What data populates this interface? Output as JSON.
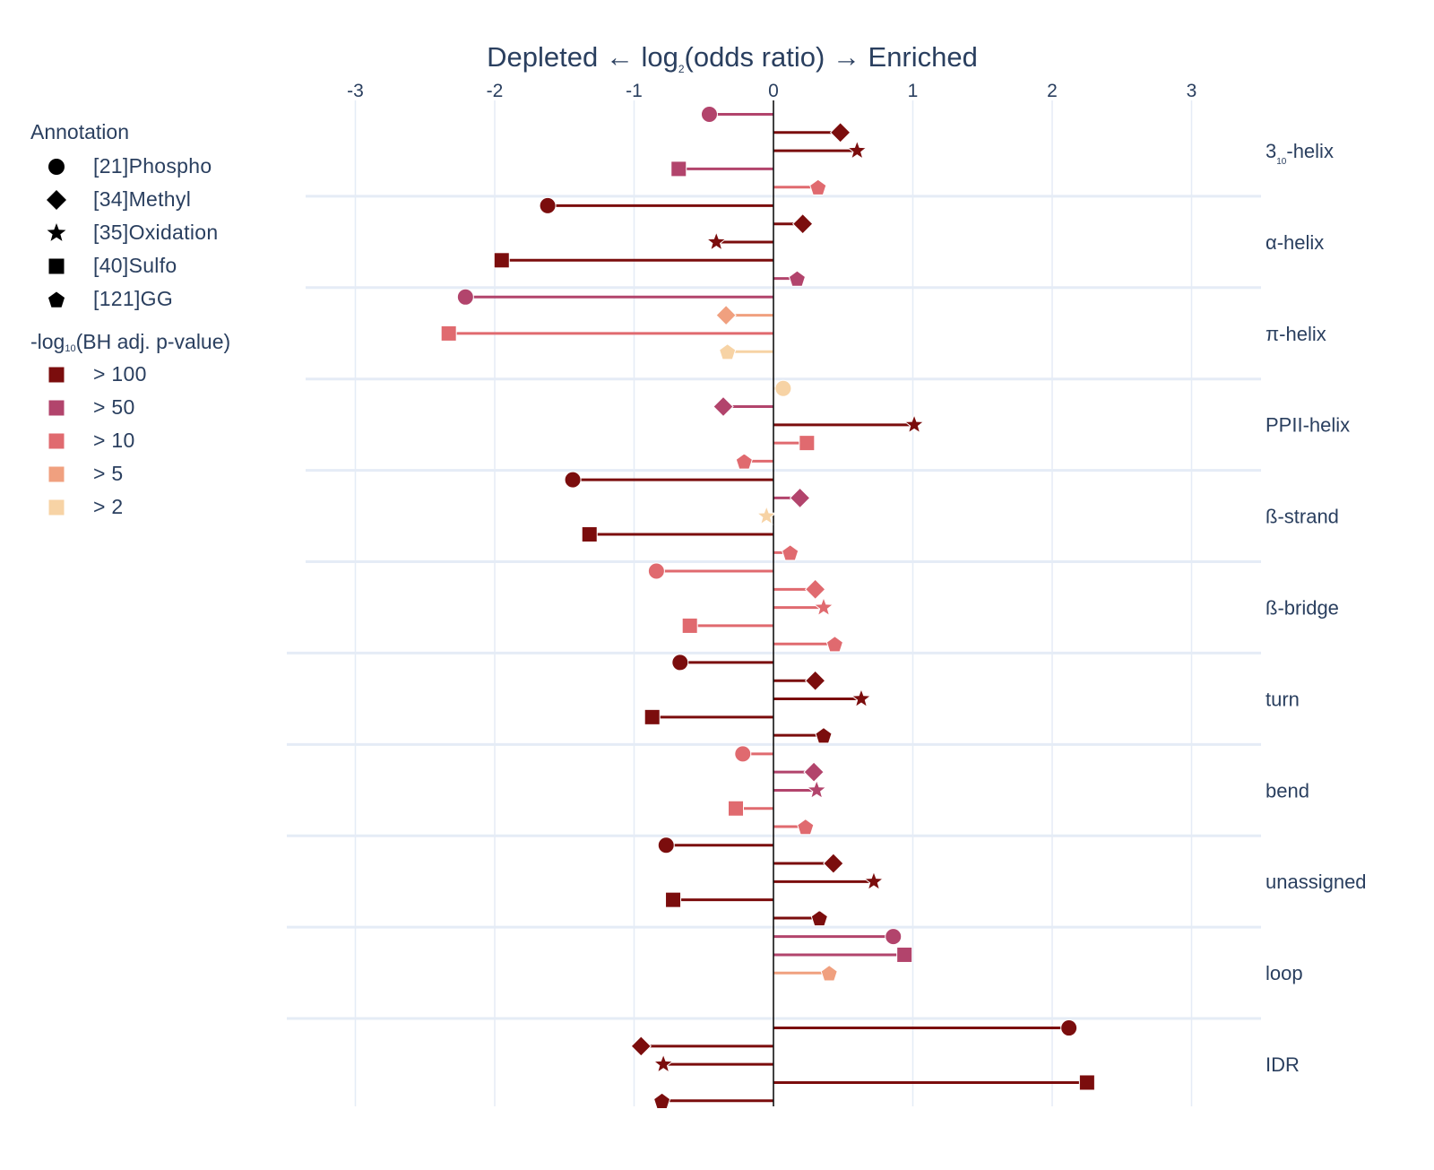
{
  "chart_data": {
    "type": "lollipop",
    "title_parts": {
      "prefix": "Depleted ← log",
      "subscript": "2",
      "suffix": "(odds ratio) → Enriched"
    },
    "xlim": [
      -3.4,
      3.4
    ],
    "xticks": [
      -3,
      -2,
      -1,
      0,
      1,
      2,
      3
    ],
    "xtick_labels": [
      "-3",
      "-2",
      "-1",
      "0",
      "1",
      "2",
      "3"
    ],
    "grid": true,
    "legend_position": "left",
    "annotation_legend": {
      "title": "Annotation",
      "items": [
        {
          "label": "[21]Phospho",
          "marker": "circle"
        },
        {
          "label": "[34]Methyl",
          "marker": "diamond"
        },
        {
          "label": "[35]Oxidation",
          "marker": "star"
        },
        {
          "label": "[40]Sulfo",
          "marker": "square"
        },
        {
          "label": "[121]GG",
          "marker": "pentagon"
        }
      ]
    },
    "pvalue_legend": {
      "title_prefix": "-log",
      "title_subscript": "10",
      "title_suffix": "(BH adj. p-value)",
      "items": [
        {
          "label": "> 100",
          "color": "#7b0d0d"
        },
        {
          "label": "> 50",
          "color": "#b2446c"
        },
        {
          "label": "> 10",
          "color": "#e06a6f"
        },
        {
          "label": "> 5",
          "color": "#f0a07f"
        },
        {
          "label": "> 2",
          "color": "#f7d3a5"
        }
      ]
    },
    "groups": [
      {
        "label": "3₁₀-helix",
        "label_main": "3",
        "label_sub": "10",
        "label_rest": "-helix",
        "rows": 5,
        "points": [
          {
            "row": 0,
            "marker": "circle",
            "x": -0.46,
            "color": "#b2446c"
          },
          {
            "row": 1,
            "marker": "diamond",
            "x": 0.48,
            "color": "#7b0d0d"
          },
          {
            "row": 2,
            "marker": "star",
            "x": 0.6,
            "color": "#7b0d0d"
          },
          {
            "row": 3,
            "marker": "square",
            "x": -0.68,
            "color": "#b2446c"
          },
          {
            "row": 4,
            "marker": "pentagon",
            "x": 0.32,
            "color": "#e06a6f"
          }
        ]
      },
      {
        "label": "α-helix",
        "rows": 5,
        "points": [
          {
            "row": 0,
            "marker": "circle",
            "x": -1.62,
            "color": "#7b0d0d"
          },
          {
            "row": 1,
            "marker": "diamond",
            "x": 0.21,
            "color": "#7b0d0d"
          },
          {
            "row": 2,
            "marker": "star",
            "x": -0.41,
            "color": "#7b0d0d"
          },
          {
            "row": 3,
            "marker": "square",
            "x": -1.95,
            "color": "#7b0d0d"
          },
          {
            "row": 4,
            "marker": "pentagon",
            "x": 0.17,
            "color": "#b2446c"
          }
        ]
      },
      {
        "label": "π-helix",
        "rows": 4,
        "points": [
          {
            "row": 0,
            "marker": "circle",
            "x": -2.21,
            "color": "#b2446c"
          },
          {
            "row": 1,
            "marker": "diamond",
            "x": -0.34,
            "color": "#f0a07f"
          },
          {
            "row": 2,
            "marker": "square",
            "x": -2.33,
            "color": "#e06a6f"
          },
          {
            "row": 3,
            "marker": "pentagon",
            "x": -0.33,
            "color": "#f7d3a5"
          }
        ]
      },
      {
        "label": "PPII-helix",
        "rows": 5,
        "points": [
          {
            "row": 0,
            "marker": "circle",
            "x": 0.07,
            "color": "#f7d3a5"
          },
          {
            "row": 1,
            "marker": "diamond",
            "x": -0.36,
            "color": "#b2446c"
          },
          {
            "row": 2,
            "marker": "star",
            "x": 1.01,
            "color": "#7b0d0d"
          },
          {
            "row": 3,
            "marker": "square",
            "x": 0.24,
            "color": "#e06a6f"
          },
          {
            "row": 4,
            "marker": "pentagon",
            "x": -0.21,
            "color": "#e06a6f"
          }
        ]
      },
      {
        "label": "ß-strand",
        "rows": 5,
        "points": [
          {
            "row": 0,
            "marker": "circle",
            "x": -1.44,
            "color": "#7b0d0d"
          },
          {
            "row": 1,
            "marker": "diamond",
            "x": 0.19,
            "color": "#b2446c"
          },
          {
            "row": 2,
            "marker": "star",
            "x": -0.05,
            "color": "#f7d3a5"
          },
          {
            "row": 3,
            "marker": "square",
            "x": -1.32,
            "color": "#7b0d0d"
          },
          {
            "row": 4,
            "marker": "pentagon",
            "x": 0.12,
            "color": "#e06a6f"
          }
        ]
      },
      {
        "label": "ß-bridge",
        "rows": 5,
        "points": [
          {
            "row": 0,
            "marker": "circle",
            "x": -0.84,
            "color": "#e06a6f"
          },
          {
            "row": 1,
            "marker": "diamond",
            "x": 0.3,
            "color": "#e06a6f"
          },
          {
            "row": 2,
            "marker": "star",
            "x": 0.36,
            "color": "#e06a6f"
          },
          {
            "row": 3,
            "marker": "square",
            "x": -0.6,
            "color": "#e06a6f"
          },
          {
            "row": 4,
            "marker": "pentagon",
            "x": 0.44,
            "color": "#e06a6f"
          }
        ]
      },
      {
        "label": "turn",
        "rows": 5,
        "points": [
          {
            "row": 0,
            "marker": "circle",
            "x": -0.67,
            "color": "#7b0d0d"
          },
          {
            "row": 1,
            "marker": "diamond",
            "x": 0.3,
            "color": "#7b0d0d"
          },
          {
            "row": 2,
            "marker": "star",
            "x": 0.63,
            "color": "#7b0d0d"
          },
          {
            "row": 3,
            "marker": "square",
            "x": -0.87,
            "color": "#7b0d0d"
          },
          {
            "row": 4,
            "marker": "pentagon",
            "x": 0.36,
            "color": "#7b0d0d"
          }
        ]
      },
      {
        "label": "bend",
        "rows": 5,
        "points": [
          {
            "row": 0,
            "marker": "circle",
            "x": -0.22,
            "color": "#e06a6f"
          },
          {
            "row": 1,
            "marker": "diamond",
            "x": 0.29,
            "color": "#b2446c"
          },
          {
            "row": 2,
            "marker": "star",
            "x": 0.31,
            "color": "#b2446c"
          },
          {
            "row": 3,
            "marker": "square",
            "x": -0.27,
            "color": "#e06a6f"
          },
          {
            "row": 4,
            "marker": "pentagon",
            "x": 0.23,
            "color": "#e06a6f"
          }
        ]
      },
      {
        "label": "unassigned",
        "rows": 5,
        "points": [
          {
            "row": 0,
            "marker": "circle",
            "x": -0.77,
            "color": "#7b0d0d"
          },
          {
            "row": 1,
            "marker": "diamond",
            "x": 0.43,
            "color": "#7b0d0d"
          },
          {
            "row": 2,
            "marker": "star",
            "x": 0.72,
            "color": "#7b0d0d"
          },
          {
            "row": 3,
            "marker": "square",
            "x": -0.72,
            "color": "#7b0d0d"
          },
          {
            "row": 4,
            "marker": "pentagon",
            "x": 0.33,
            "color": "#7b0d0d"
          }
        ]
      },
      {
        "label": "loop",
        "rows": 3,
        "points": [
          {
            "row": 0,
            "marker": "circle",
            "x": 0.86,
            "color": "#b2446c"
          },
          {
            "row": 1,
            "marker": "square",
            "x": 0.94,
            "color": "#b2446c"
          },
          {
            "row": 2,
            "marker": "pentagon",
            "x": 0.4,
            "color": "#f0a07f"
          }
        ]
      },
      {
        "label": "IDR",
        "rows": 5,
        "points": [
          {
            "row": 0,
            "marker": "circle",
            "x": 2.12,
            "color": "#7b0d0d"
          },
          {
            "row": 1,
            "marker": "diamond",
            "x": -0.95,
            "color": "#7b0d0d"
          },
          {
            "row": 2,
            "marker": "star",
            "x": -0.79,
            "color": "#7b0d0d"
          },
          {
            "row": 3,
            "marker": "square",
            "x": 2.25,
            "color": "#7b0d0d"
          },
          {
            "row": 4,
            "marker": "pentagon",
            "x": -0.8,
            "color": "#7b0d0d"
          }
        ]
      }
    ]
  }
}
